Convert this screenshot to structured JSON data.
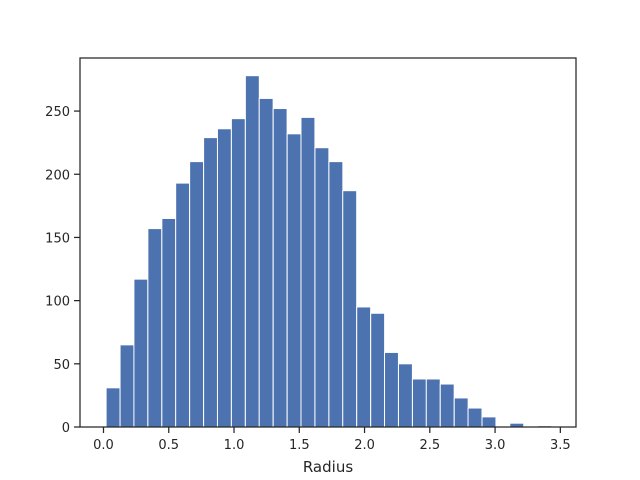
{
  "chart_data": {
    "type": "bar",
    "title": "",
    "xlabel": "Radius",
    "ylabel": "",
    "xlim": [
      -0.18,
      3.62
    ],
    "ylim": [
      0,
      292
    ],
    "grid": false,
    "bar_color": "#4c72b0",
    "bin_width": 0.1067,
    "bins": [
      {
        "x0": 0.02,
        "count": 31
      },
      {
        "x0": 0.127,
        "count": 65
      },
      {
        "x0": 0.233,
        "count": 117
      },
      {
        "x0": 0.34,
        "count": 157
      },
      {
        "x0": 0.447,
        "count": 165
      },
      {
        "x0": 0.553,
        "count": 193
      },
      {
        "x0": 0.66,
        "count": 210
      },
      {
        "x0": 0.767,
        "count": 229
      },
      {
        "x0": 0.873,
        "count": 236
      },
      {
        "x0": 0.98,
        "count": 244
      },
      {
        "x0": 1.087,
        "count": 278
      },
      {
        "x0": 1.193,
        "count": 260
      },
      {
        "x0": 1.3,
        "count": 252
      },
      {
        "x0": 1.407,
        "count": 232
      },
      {
        "x0": 1.513,
        "count": 245
      },
      {
        "x0": 1.62,
        "count": 221
      },
      {
        "x0": 1.727,
        "count": 210
      },
      {
        "x0": 1.833,
        "count": 187
      },
      {
        "x0": 1.94,
        "count": 95
      },
      {
        "x0": 2.047,
        "count": 90
      },
      {
        "x0": 2.153,
        "count": 59
      },
      {
        "x0": 2.26,
        "count": 50
      },
      {
        "x0": 2.367,
        "count": 38
      },
      {
        "x0": 2.473,
        "count": 38
      },
      {
        "x0": 2.58,
        "count": 34
      },
      {
        "x0": 2.687,
        "count": 23
      },
      {
        "x0": 2.793,
        "count": 15
      },
      {
        "x0": 2.9,
        "count": 8
      },
      {
        "x0": 3.007,
        "count": 0
      },
      {
        "x0": 3.113,
        "count": 3
      },
      {
        "x0": 3.22,
        "count": 0
      },
      {
        "x0": 3.327,
        "count": 1
      }
    ],
    "x_ticks": [
      {
        "value": 0.0,
        "label": "0.0"
      },
      {
        "value": 0.5,
        "label": "0.5"
      },
      {
        "value": 1.0,
        "label": "1.0"
      },
      {
        "value": 1.5,
        "label": "1.5"
      },
      {
        "value": 2.0,
        "label": "2.0"
      },
      {
        "value": 2.5,
        "label": "2.5"
      },
      {
        "value": 3.0,
        "label": "3.0"
      },
      {
        "value": 3.5,
        "label": "3.5"
      }
    ],
    "y_ticks": [
      {
        "value": 0,
        "label": "0"
      },
      {
        "value": 50,
        "label": "50"
      },
      {
        "value": 100,
        "label": "100"
      },
      {
        "value": 150,
        "label": "150"
      },
      {
        "value": 200,
        "label": "200"
      },
      {
        "value": 250,
        "label": "250"
      }
    ]
  }
}
